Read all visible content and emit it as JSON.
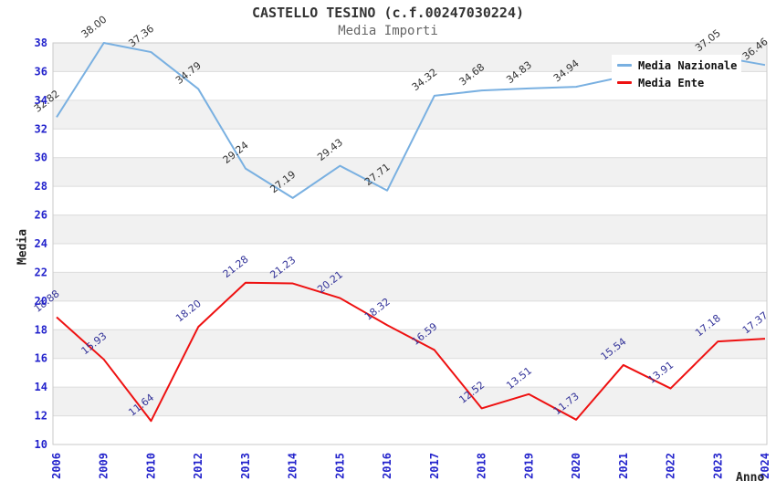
{
  "chart_data": {
    "type": "line",
    "title": "CASTELLO TESINO (c.f.00247030224)",
    "subtitle": "Media Importi",
    "xlabel": "Anno",
    "ylabel": "Media",
    "ylim": [
      10,
      38
    ],
    "ytick_step": 2,
    "grid": true,
    "legend_position": "top-right",
    "band_color": "#f1f1f1",
    "grid_color": "#dcdcdc",
    "border_color": "#c9c9c9",
    "tick_color": "#2323cc",
    "categories": [
      "2006",
      "2009",
      "2010",
      "2012",
      "2013",
      "2014",
      "2015",
      "2016",
      "2017",
      "2018",
      "2019",
      "2020",
      "2021",
      "2022",
      "2023",
      "2024"
    ],
    "series": [
      {
        "id": "media-nazionale",
        "name": "Media Nazionale",
        "color": "#79b0e1",
        "label_color": "#333333",
        "values": [
          32.82,
          38.0,
          37.36,
          34.79,
          29.24,
          27.19,
          29.43,
          27.71,
          34.32,
          34.68,
          34.83,
          34.94,
          null,
          null,
          37.05,
          36.46
        ]
      },
      {
        "id": "media-ente",
        "name": "Media Ente",
        "color": "#ee1111",
        "label_color": "#333399",
        "values": [
          18.88,
          15.93,
          11.64,
          18.2,
          21.28,
          21.23,
          20.21,
          18.32,
          16.59,
          12.52,
          13.51,
          11.73,
          15.54,
          13.91,
          17.18,
          17.37
        ]
      }
    ]
  }
}
